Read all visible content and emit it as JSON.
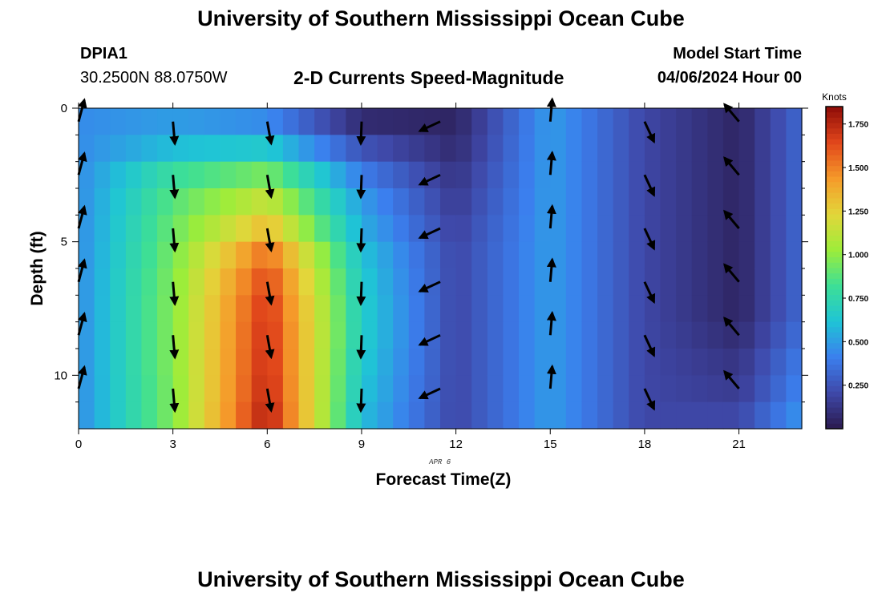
{
  "header": {
    "title": "University of Southern Mississippi Ocean Cube",
    "station": "DPIA1",
    "coords": "30.2500N  88.0750W",
    "subtitle": "2-D Currents Speed-Magnitude",
    "model_start_label": "Model Start Time",
    "model_start_value": "04/06/2024 Hour 00"
  },
  "footer": {
    "title": "University of Southern Mississippi Ocean Cube"
  },
  "chart_data": {
    "type": "heatmap",
    "xlabel": "Forecast Time(Z)",
    "ylabel": "Depth (ft)",
    "x_annotation": "APR 6",
    "xlim": [
      0,
      23
    ],
    "ylim": [
      0,
      12
    ],
    "y_inverted": true,
    "x_ticks": [
      "0",
      "3",
      "6",
      "9",
      "12",
      "15",
      "18",
      "21"
    ],
    "y_ticks": [
      "0",
      "5",
      "10"
    ],
    "colorbar": {
      "label": "Knots",
      "ticks": [
        "0.250",
        "0.500",
        "0.750",
        "1.000",
        "1.250",
        "1.500",
        "1.750"
      ],
      "range": [
        0,
        1.85
      ],
      "stops": [
        "#2a1a4e",
        "#3f48a8",
        "#3b7fee",
        "#1fc4d6",
        "#3ddf96",
        "#9ded3a",
        "#e3d63a",
        "#f59a2a",
        "#e1461b",
        "#8f0c08"
      ]
    },
    "grid": false,
    "hours": [
      0,
      3,
      6,
      9,
      12,
      15,
      18,
      21
    ],
    "hour_speed_profiles": [
      [
        0.45,
        0.45,
        0.45,
        0.45,
        0.45,
        0.45,
        0.45,
        0.45,
        0.45,
        0.45,
        0.45,
        0.45
      ],
      [
        0.5,
        0.6,
        0.8,
        0.88,
        0.92,
        0.95,
        0.97,
        0.98,
        0.98,
        0.98,
        0.97,
        0.97
      ],
      [
        0.45,
        0.65,
        0.95,
        1.15,
        1.32,
        1.55,
        1.65,
        1.7,
        1.72,
        1.73,
        1.75,
        1.78
      ],
      [
        0.08,
        0.25,
        0.4,
        0.5,
        0.55,
        0.62,
        0.65,
        0.67,
        0.67,
        0.65,
        0.63,
        0.6
      ],
      [
        0.05,
        0.08,
        0.12,
        0.15,
        0.18,
        0.2,
        0.2,
        0.2,
        0.2,
        0.2,
        0.2,
        0.2
      ],
      [
        0.5,
        0.5,
        0.5,
        0.5,
        0.5,
        0.5,
        0.5,
        0.5,
        0.5,
        0.5,
        0.5,
        0.5
      ],
      [
        0.2,
        0.2,
        0.2,
        0.2,
        0.2,
        0.2,
        0.2,
        0.2,
        0.2,
        0.2,
        0.2,
        0.2
      ],
      [
        0.05,
        0.05,
        0.05,
        0.05,
        0.05,
        0.05,
        0.05,
        0.05,
        0.08,
        0.12,
        0.15,
        0.2
      ]
    ],
    "arrow_depths": [
      0.5,
      2.5,
      4.5,
      6.5,
      8.5,
      10.5
    ],
    "arrows": [
      {
        "hour": 0,
        "dir": 15
      },
      {
        "hour": 3,
        "dir": 175
      },
      {
        "hour": 6,
        "dir": 170
      },
      {
        "hour": 9,
        "dir": 182
      },
      {
        "hour": 11.5,
        "dir": 245
      },
      {
        "hour": 15,
        "dir": 5
      },
      {
        "hour": 18,
        "dir": 155
      },
      {
        "hour": 21,
        "dir": 320
      }
    ]
  }
}
